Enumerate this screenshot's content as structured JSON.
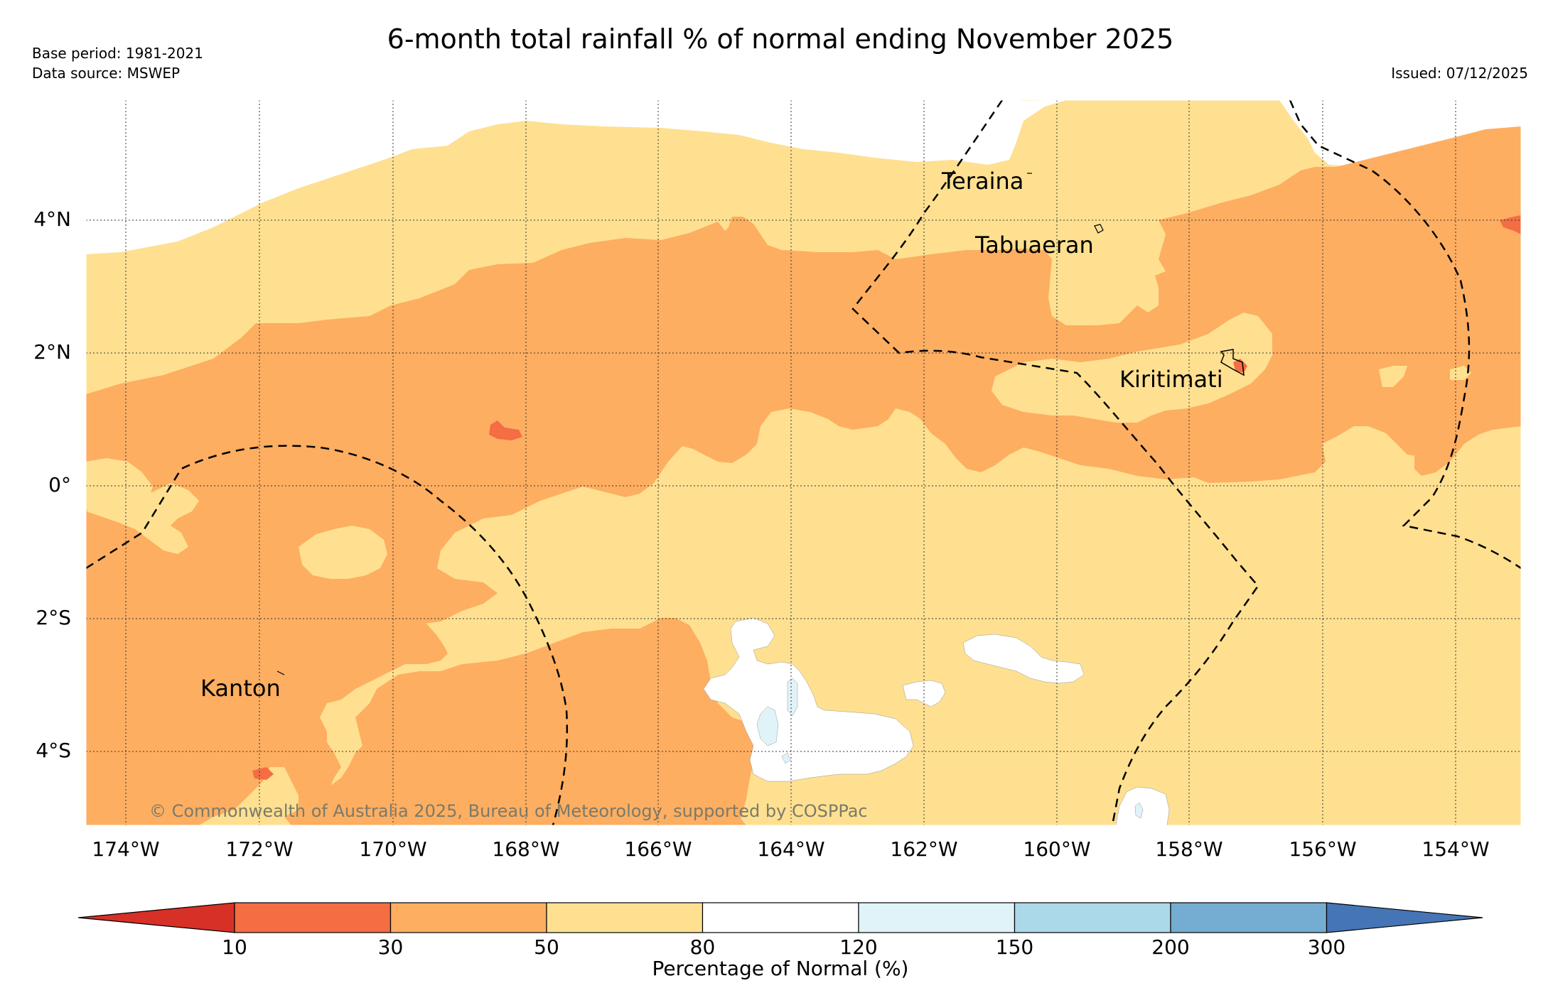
{
  "header": {
    "title": "6-month total rainfall % of normal ending November 2025",
    "base_period": "Base period: 1981-2021",
    "data_source": "Data source: MSWEP",
    "issued": "Issued: 07/12/2025"
  },
  "map": {
    "lon_labels": [
      "174°W",
      "172°W",
      "170°W",
      "168°W",
      "166°W",
      "164°W",
      "162°W",
      "160°W",
      "158°W",
      "156°W",
      "154°W"
    ],
    "lat_labels": [
      "4°N",
      "2°N",
      "0°",
      "2°S",
      "4°S"
    ],
    "places": [
      "Teraina",
      "Tabuaeran",
      "Kiritimati",
      "Kanton"
    ],
    "copyright": "© Commonwealth of Australia 2025, Bureau of Meteorology, supported by COSPPac"
  },
  "colorbar": {
    "title": "Percentage of Normal (%)",
    "tick_labels": [
      "10",
      "30",
      "50",
      "80",
      "120",
      "150",
      "200",
      "300"
    ],
    "colors": {
      "below_10": "#d73027",
      "10_30": "#f46d43",
      "30_50": "#fdae61",
      "50_80": "#fee090",
      "80_120": "#ffffff",
      "120_150": "#e0f3f8",
      "150_200": "#abd9e9",
      "200_300": "#74add1",
      "above_300": "#4575b4"
    }
  }
}
